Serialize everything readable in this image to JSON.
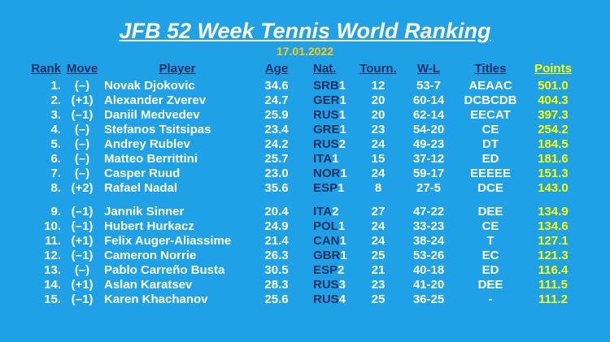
{
  "title": "JFB 52 Week Tennis World Ranking",
  "date": "17.01.2022",
  "colors": {
    "background": "#1fa1e8",
    "header_text": "#1c2f5f",
    "body_text": "#ffffff",
    "points": "#ffff00",
    "date": "#ffc90e",
    "nation_code": "#1c2f5f"
  },
  "headers": {
    "rank": "Rank",
    "move": "Move",
    "player": "Player",
    "age": "Age",
    "nat": "Nat.",
    "tourn": "Tourn.",
    "wl": "W-L",
    "titles": "Titles",
    "points": "Points"
  },
  "rows": [
    {
      "rank": "1.",
      "move": "(–)",
      "player": "Novak Djokovic",
      "age": "34.6",
      "nat": "SRB",
      "nat_rank": "1",
      "tourn": "12",
      "wl": "53-7",
      "titles": "AEAAC",
      "points": "501.0"
    },
    {
      "rank": "2.",
      "move": "(+1)",
      "player": "Alexander Zverev",
      "age": "24.7",
      "nat": "GER",
      "nat_rank": "1",
      "tourn": "20",
      "wl": "60-14",
      "titles": "DCBCDB",
      "points": "404.3"
    },
    {
      "rank": "3.",
      "move": "(–1)",
      "player": "Daniil Medvedev",
      "age": "25.9",
      "nat": "RUS",
      "nat_rank": "1",
      "tourn": "20",
      "wl": "62-14",
      "titles": "EECAT",
      "points": "397.3"
    },
    {
      "rank": "4.",
      "move": "(–)",
      "player": "Stefanos Tsitsipas",
      "age": "23.4",
      "nat": "GRE",
      "nat_rank": "1",
      "tourn": "23",
      "wl": "54-20",
      "titles": "CE",
      "points": "254.2"
    },
    {
      "rank": "5.",
      "move": "(–)",
      "player": "Andrey Rublev",
      "age": "24.2",
      "nat": "RUS",
      "nat_rank": "2",
      "tourn": "24",
      "wl": "49-23",
      "titles": "DT",
      "points": "184.5"
    },
    {
      "rank": "6.",
      "move": "(–)",
      "player": "Matteo Berrittini",
      "age": "25.7",
      "nat": "ITA",
      "nat_rank": "1",
      "tourn": "15",
      "wl": "37-12",
      "titles": "ED",
      "points": "181.6"
    },
    {
      "rank": "7.",
      "move": "(–)",
      "player": "Casper Ruud",
      "age": "23.0",
      "nat": "NOR",
      "nat_rank": "1",
      "tourn": "24",
      "wl": "59-17",
      "titles": "EEEEE",
      "points": "151.3"
    },
    {
      "rank": "8.",
      "move": "(+2)",
      "player": "Rafael Nadal",
      "age": "35.6",
      "nat": "ESP",
      "nat_rank": "1",
      "tourn": "8",
      "wl": "27-5",
      "titles": "DCE",
      "points": "143.0"
    },
    {
      "rank": "9.",
      "move": "(–1)",
      "player": "Jannik Sinner",
      "age": "20.4",
      "nat": "ITA",
      "nat_rank": "2",
      "tourn": "27",
      "wl": "47-22",
      "titles": "DEE",
      "points": "134.9"
    },
    {
      "rank": "10.",
      "move": "(–1)",
      "player": "Hubert Hurkacz",
      "age": "24.9",
      "nat": "POL",
      "nat_rank": "1",
      "tourn": "24",
      "wl": "33-23",
      "titles": "CE",
      "points": "134.6"
    },
    {
      "rank": "11.",
      "move": "(+1)",
      "player": "Felix Auger-Aliassime",
      "age": "21.4",
      "nat": "CAN",
      "nat_rank": "1",
      "tourn": "24",
      "wl": "38-24",
      "titles": "T",
      "points": "127.1"
    },
    {
      "rank": "12.",
      "move": "(–1)",
      "player": "Cameron Norrie",
      "age": "26.3",
      "nat": "GBR",
      "nat_rank": "1",
      "tourn": "25",
      "wl": "53-26",
      "titles": "EC",
      "points": "121.3"
    },
    {
      "rank": "13.",
      "move": "(–)",
      "player": "Pablo Carreño Busta",
      "age": "30.5",
      "nat": "ESP",
      "nat_rank": "2",
      "tourn": "21",
      "wl": "40-18",
      "titles": "ED",
      "points": "116.4"
    },
    {
      "rank": "14.",
      "move": "(+1)",
      "player": "Aslan Karatsev",
      "age": "28.3",
      "nat": "RUS",
      "nat_rank": "3",
      "tourn": "23",
      "wl": "41-20",
      "titles": "DEE",
      "points": "111.5"
    },
    {
      "rank": "15.",
      "move": "(–1)",
      "player": "Karen Khachanov",
      "age": "25.6",
      "nat": "RUS",
      "nat_rank": "4",
      "tourn": "25",
      "wl": "36-25",
      "titles": "-",
      "points": "111.2"
    }
  ]
}
